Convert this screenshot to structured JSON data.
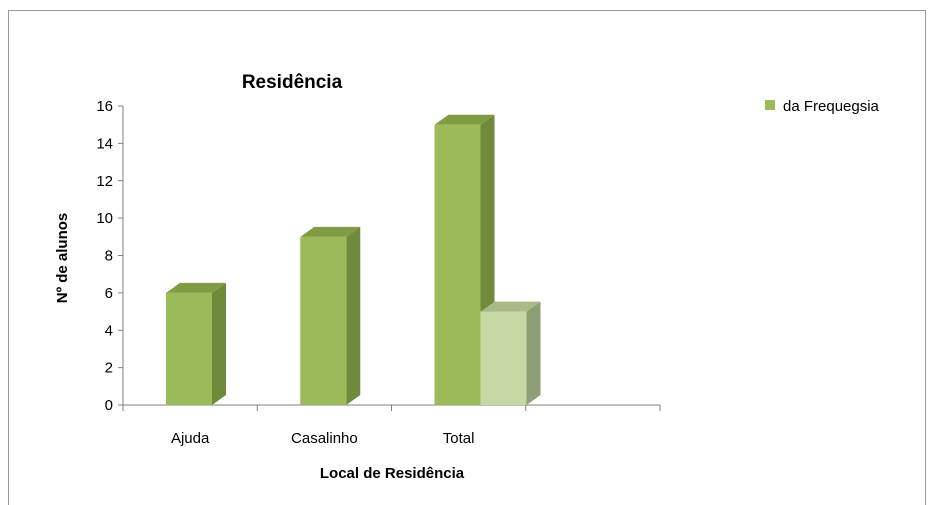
{
  "chart_data": {
    "type": "bar",
    "title": "Residência",
    "xlabel": "Local de Residência",
    "ylabel": "Nº de alunos",
    "categories": [
      "Ajuda",
      "Casalinho",
      "Total"
    ],
    "yticks": [
      "0",
      "2",
      "4",
      "6",
      "8",
      "10",
      "12",
      "14",
      "16"
    ],
    "ylim": [
      0,
      16
    ],
    "grid": false,
    "three_d": true,
    "legend_position": "top-right",
    "series": [
      {
        "name": "da Frequegsia",
        "values": [
          6,
          9,
          15
        ],
        "color": "#9bbb59",
        "side_color": "#6e8a3a",
        "top_color": "#7f9c45"
      },
      {
        "name": "",
        "values": [
          null,
          null,
          5
        ],
        "color": "#c6d8a6",
        "side_color": "#8e9e77",
        "top_color": "#a8bb86"
      }
    ]
  }
}
